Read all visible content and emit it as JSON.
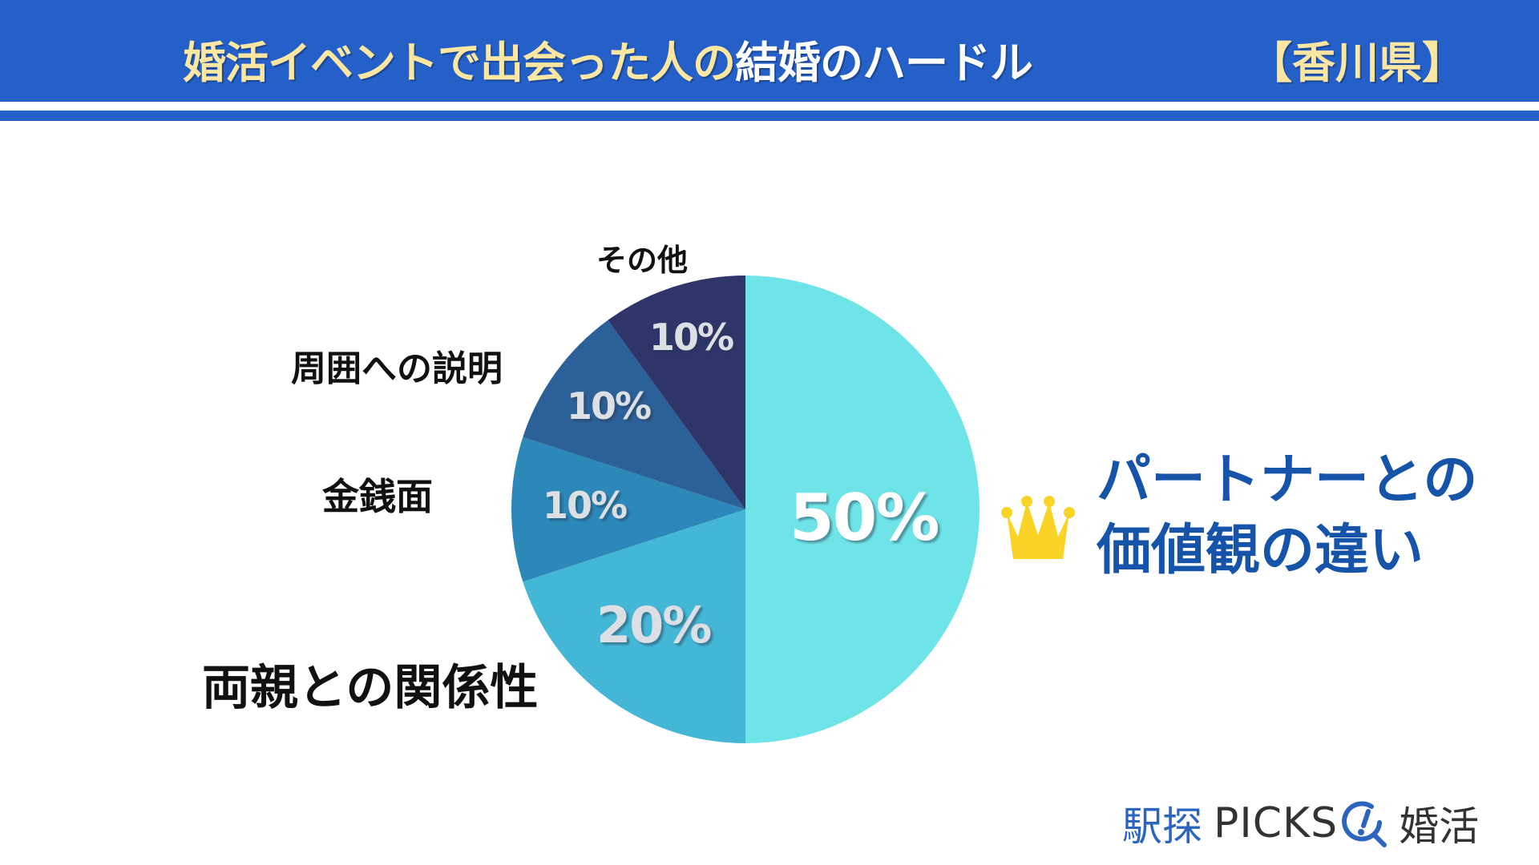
{
  "header": {
    "title_part1": "婚活イベントで出会った人の",
    "title_part2": "結婚のハードル",
    "prefecture": "【香川県】",
    "bg_color": "#2560C8",
    "title_highlight_color": "#FBE7A1"
  },
  "chart_data": {
    "type": "pie",
    "title": "婚活イベントで出会った人の結婚のハードル【香川県】",
    "start_angle": "12 o'clock",
    "direction": "clockwise",
    "categories": [
      "パートナーとの価値観の違い",
      "両親との関係性",
      "金銭面",
      "周囲への説明",
      "その他"
    ],
    "values": [
      50,
      20,
      10,
      10,
      10
    ],
    "unit": "%",
    "colors": [
      "#6EE3E8",
      "#44B6D6",
      "#2B88B8",
      "#2C6098",
      "#2F3469"
    ],
    "value_labels": [
      "50%",
      "20%",
      "10%",
      "10%",
      "10%"
    ],
    "legend": "direct labels beside slices",
    "top_item_marker": "crown-icon"
  },
  "labels": {
    "top_answer_line1": "パートナーとの",
    "top_answer_line2": "価値観の違い",
    "parents": "両親との関係性",
    "money": "金銭面",
    "surroundings": "周囲への説明",
    "other": "その他"
  },
  "logo": {
    "ekitan": "駅探",
    "picks": "PICKS",
    "konkatsu": "婚活",
    "brand_color": "#2C65BE"
  }
}
